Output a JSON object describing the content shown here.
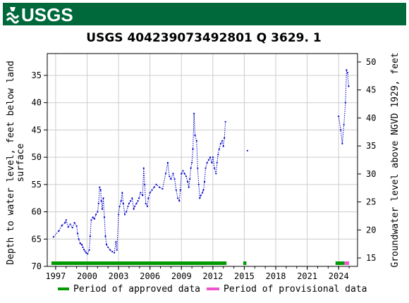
{
  "header": {
    "logo_text": "USGS",
    "banner_color": "#00693c"
  },
  "chart_data": {
    "type": "line",
    "title": "USGS 404239073492801 Q  3629. 1",
    "ylabel_left": "Depth to water level, feet below land surface",
    "ylabel_left_lines": [
      "Depth to water level, feet below land",
      "surface"
    ],
    "ylabel_right": "Groundwater level above NGVD 1929, feet",
    "xlim": [
      1996.2,
      2025.8
    ],
    "ylim_left": [
      70,
      31
    ],
    "ylim_right": [
      13.5,
      51.5
    ],
    "x_ticks": [
      1997,
      2000,
      2003,
      2006,
      2009,
      2012,
      2015,
      2018,
      2021,
      2024
    ],
    "x_tick_labels": [
      "1997",
      "2000",
      "2003",
      "2006",
      "2009",
      "2012",
      "2015",
      "2018",
      "2021",
      "2024"
    ],
    "y_ticks_left": [
      35,
      40,
      45,
      50,
      55,
      60,
      65,
      70
    ],
    "y_tick_labels_left": [
      "35",
      "40",
      "45",
      "50",
      "55",
      "60",
      "65",
      "70"
    ],
    "y_ticks_right": [
      15,
      20,
      25,
      30,
      35,
      40,
      45,
      50
    ],
    "y_tick_labels_right": [
      "15",
      "20",
      "25",
      "30",
      "35",
      "40",
      "45",
      "50"
    ],
    "grid": true,
    "series": [
      {
        "style": "dotted",
        "color": "#0000cc",
        "points": [
          [
            1996.8,
            64.6
          ],
          [
            1997.3,
            63.5
          ],
          [
            1997.6,
            62.5
          ],
          [
            1997.9,
            62.0
          ],
          [
            1998.0,
            61.5
          ],
          [
            1998.2,
            62.8
          ],
          [
            1998.4,
            62.3
          ],
          [
            1998.6,
            62.9
          ],
          [
            1998.8,
            62.0
          ],
          [
            1999.0,
            62.6
          ],
          [
            1999.1,
            64.0
          ],
          [
            1999.2,
            65.0
          ],
          [
            1999.35,
            65.8
          ],
          [
            1999.5,
            66.0
          ],
          [
            1999.6,
            66.5
          ],
          [
            1999.7,
            66.9
          ],
          [
            1999.8,
            67.2
          ],
          [
            1999.9,
            67.5
          ],
          [
            2000.05,
            67.7
          ],
          [
            2000.2,
            67.0
          ],
          [
            2000.3,
            64.5
          ],
          [
            2000.4,
            61.5
          ],
          [
            2000.55,
            61.0
          ],
          [
            2000.7,
            61.3
          ],
          [
            2000.85,
            60.5
          ],
          [
            2001.0,
            60.0
          ],
          [
            2001.1,
            58.5
          ],
          [
            2001.2,
            55.5
          ],
          [
            2001.3,
            56.0
          ],
          [
            2001.35,
            58.0
          ],
          [
            2001.45,
            59.5
          ],
          [
            2001.55,
            57.5
          ],
          [
            2001.65,
            61.0
          ],
          [
            2001.75,
            64.5
          ],
          [
            2001.85,
            66.0
          ],
          [
            2002.0,
            66.5
          ],
          [
            2002.2,
            67.0
          ],
          [
            2002.4,
            67.3
          ],
          [
            2002.6,
            67.5
          ],
          [
            2002.75,
            65.5
          ],
          [
            2002.85,
            67.0
          ],
          [
            2003.0,
            60.5
          ],
          [
            2003.1,
            59.0
          ],
          [
            2003.25,
            58.0
          ],
          [
            2003.35,
            56.5
          ],
          [
            2003.45,
            58.5
          ],
          [
            2003.6,
            60.5
          ],
          [
            2003.75,
            60.0
          ],
          [
            2003.9,
            59.0
          ],
          [
            2004.0,
            58.5
          ],
          [
            2004.15,
            58.0
          ],
          [
            2004.3,
            57.5
          ],
          [
            2004.45,
            59.5
          ],
          [
            2004.55,
            59.0
          ],
          [
            2004.7,
            58.5
          ],
          [
            2004.85,
            58.0
          ],
          [
            2004.95,
            57.5
          ],
          [
            2005.1,
            56.5
          ],
          [
            2005.3,
            57.0
          ],
          [
            2005.4,
            52.0
          ],
          [
            2005.5,
            55.0
          ],
          [
            2005.6,
            58.5
          ],
          [
            2005.75,
            59.0
          ],
          [
            2005.85,
            57.5
          ],
          [
            2006.0,
            56.5
          ],
          [
            2006.2,
            56.0
          ],
          [
            2006.4,
            55.5
          ],
          [
            2006.6,
            55.0
          ],
          [
            2006.9,
            55.5
          ],
          [
            2007.2,
            55.8
          ],
          [
            2007.5,
            53.0
          ],
          [
            2007.7,
            51.0
          ],
          [
            2007.85,
            53.5
          ],
          [
            2008.0,
            54.0
          ],
          [
            2008.2,
            53.0
          ],
          [
            2008.35,
            54.0
          ],
          [
            2008.5,
            56.0
          ],
          [
            2008.65,
            57.5
          ],
          [
            2008.8,
            58.0
          ],
          [
            2008.9,
            56.0
          ],
          [
            2009.0,
            53.0
          ],
          [
            2009.15,
            52.5
          ],
          [
            2009.3,
            53.0
          ],
          [
            2009.45,
            53.5
          ],
          [
            2009.6,
            54.5
          ],
          [
            2009.7,
            55.5
          ],
          [
            2009.8,
            54.0
          ],
          [
            2009.9,
            52.0
          ],
          [
            2010.0,
            51.0
          ],
          [
            2010.1,
            48.5
          ],
          [
            2010.2,
            42.0
          ],
          [
            2010.3,
            46.0
          ],
          [
            2010.45,
            47.0
          ],
          [
            2010.55,
            52.0
          ],
          [
            2010.65,
            55.0
          ],
          [
            2010.75,
            57.5
          ],
          [
            2010.85,
            57.0
          ],
          [
            2011.0,
            56.5
          ],
          [
            2011.1,
            56.0
          ],
          [
            2011.2,
            54.5
          ],
          [
            2011.3,
            52.0
          ],
          [
            2011.45,
            51.0
          ],
          [
            2011.6,
            50.5
          ],
          [
            2011.75,
            50.0
          ],
          [
            2011.9,
            51.0
          ],
          [
            2012.0,
            50.0
          ],
          [
            2012.15,
            52.0
          ],
          [
            2012.3,
            53.0
          ],
          [
            2012.4,
            51.0
          ],
          [
            2012.5,
            49.5
          ],
          [
            2012.6,
            48.5
          ],
          [
            2012.75,
            47.5
          ],
          [
            2012.9,
            47.0
          ],
          [
            2013.0,
            48.0
          ],
          [
            2013.1,
            46.5
          ],
          [
            2013.2,
            43.5
          ],
          null,
          [
            2015.3,
            48.8
          ],
          null,
          [
            2024.0,
            42.5
          ],
          [
            2024.2,
            45.0
          ],
          [
            2024.35,
            47.5
          ],
          [
            2024.5,
            44.0
          ],
          [
            2024.65,
            40.0
          ],
          [
            2024.75,
            34.0
          ],
          [
            2024.85,
            34.5
          ],
          [
            2024.95,
            37.0
          ]
        ]
      }
    ],
    "legend": {
      "placement": "bottom",
      "items": [
        {
          "label": "Period of approved data",
          "color": "#009a00"
        },
        {
          "label": "Period of provisional data",
          "color": "#ee55cc"
        }
      ]
    },
    "periods": {
      "approved": [
        [
          1996.6,
          2013.3
        ],
        [
          2014.9,
          2015.2
        ],
        [
          2023.7,
          2024.55
        ]
      ],
      "provisional": [
        [
          2024.55,
          2025.0
        ]
      ]
    }
  }
}
